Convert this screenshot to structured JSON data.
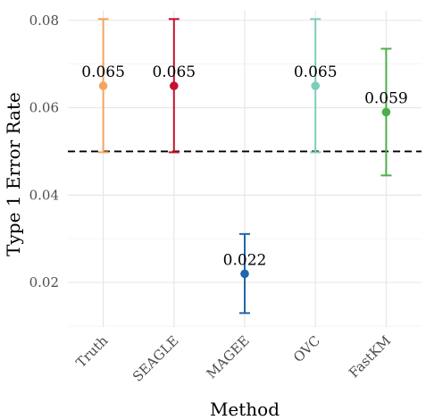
{
  "chart_data": {
    "type": "scatter",
    "xlabel": "Method",
    "ylabel": "Type 1 Error Rate",
    "categories": [
      "Truth",
      "SEAGLE",
      "MAGEE",
      "OVC",
      "FastKM"
    ],
    "values": [
      0.065,
      0.065,
      0.022,
      0.065,
      0.059
    ],
    "lower": [
      0.0498,
      0.0498,
      0.013,
      0.0498,
      0.0445
    ],
    "upper": [
      0.0803,
      0.0803,
      0.0311,
      0.0803,
      0.0735
    ],
    "labels": [
      "0.065",
      "0.065",
      "0.022",
      "0.065",
      "0.059"
    ],
    "colors": [
      "#f4a460",
      "#c8102e",
      "#2166ac",
      "#7fcdbb",
      "#4daf4a"
    ],
    "yticks": [
      0.02,
      0.04,
      0.06,
      0.08
    ],
    "ytick_labels": [
      "0.02",
      "0.04",
      "0.06",
      "0.08"
    ],
    "ylim": [
      0.0098,
      0.0822
    ],
    "reference_line": 0.05,
    "grid": true,
    "legend": "none"
  }
}
